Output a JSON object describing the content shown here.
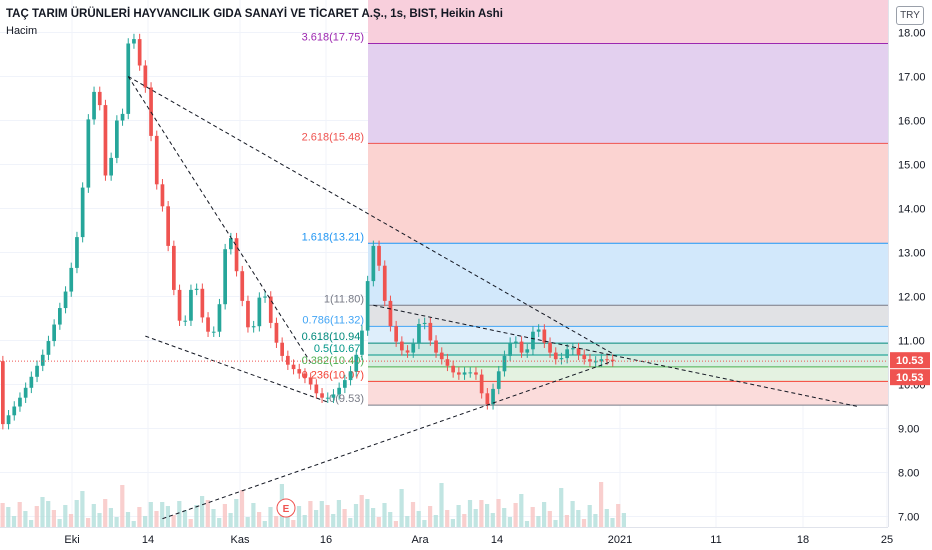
{
  "header": {
    "title": "TAÇ TARIM ÜRÜNLERİ HAYVANCILIK GIDA SANAYİ VE TİCARET A.Ş., 1s, BIST, Heikin Ashi",
    "volume_label": "Hacim",
    "currency": "TRY"
  },
  "colors": {
    "up": "#26a69a",
    "down": "#ef5350",
    "trendline": "#131722",
    "last_price_badge": "#ef5350",
    "pivot_line": "#9598a1"
  },
  "earnings_marker": "E",
  "chart_data": {
    "type": "candlestick",
    "candle_style": "Heikin Ashi",
    "interval": "1s",
    "currency": "TRY",
    "ylim": [
      6.9,
      18.3
    ],
    "y_ticks": [
      "18.00",
      "17.00",
      "16.00",
      "15.00",
      "14.00",
      "13.00",
      "12.00",
      "11.00",
      "10.00",
      "9.00",
      "8.00",
      "7.00"
    ],
    "x_ticks": [
      "Eki",
      "14",
      "Kas",
      "16",
      "Ara",
      "14",
      "2021",
      "11",
      "18",
      "25"
    ],
    "last_price": "10.53",
    "last_price_badges": [
      "10.53",
      "10.53"
    ],
    "price_path": [
      [
        0,
        9.0
      ],
      [
        4,
        9.8
      ],
      [
        8,
        10.8
      ],
      [
        12,
        12.3
      ],
      [
        14,
        13.7
      ],
      [
        16,
        16.8
      ],
      [
        18,
        16.2
      ],
      [
        19,
        13.3
      ],
      [
        20,
        17.0
      ],
      [
        21,
        15.0
      ],
      [
        22,
        17.3
      ],
      [
        23,
        18.2
      ],
      [
        24,
        17.5
      ],
      [
        26,
        16.5
      ],
      [
        27,
        14.8
      ],
      [
        29,
        13.8
      ],
      [
        30,
        12.5
      ],
      [
        32,
        11.1
      ],
      [
        34,
        12.5
      ],
      [
        36,
        11.2
      ],
      [
        38,
        11.2
      ],
      [
        40,
        13.7
      ],
      [
        42,
        12.2
      ],
      [
        44,
        11.0
      ],
      [
        46,
        12.3
      ],
      [
        48,
        11.1
      ],
      [
        50,
        10.5
      ],
      [
        52,
        10.3
      ],
      [
        54,
        10.1
      ],
      [
        56,
        9.7
      ],
      [
        58,
        9.7
      ],
      [
        60,
        10.0
      ],
      [
        62,
        10.4
      ],
      [
        64,
        11.5
      ],
      [
        65,
        13.2
      ],
      [
        66,
        13.1
      ],
      [
        68,
        11.5
      ],
      [
        70,
        10.8
      ],
      [
        72,
        10.7
      ],
      [
        74,
        11.6
      ],
      [
        76,
        10.8
      ],
      [
        78,
        10.5
      ],
      [
        80,
        10.2
      ],
      [
        82,
        10.3
      ],
      [
        84,
        10.2
      ],
      [
        85,
        9.4
      ],
      [
        86,
        9.7
      ],
      [
        88,
        10.5
      ],
      [
        90,
        11.1
      ],
      [
        92,
        10.6
      ],
      [
        94,
        11.4
      ],
      [
        96,
        10.8
      ],
      [
        98,
        10.5
      ],
      [
        100,
        10.9
      ],
      [
        102,
        10.6
      ],
      [
        104,
        10.5
      ],
      [
        106,
        10.6
      ],
      [
        107,
        10.53
      ]
    ],
    "fibonacci": {
      "levels": [
        {
          "label": "3.618(17.75)",
          "value": 17.75,
          "color": "#9c27b0",
          "fill": "#e3d0ef"
        },
        {
          "label": "2.618(15.48)",
          "value": 15.48,
          "color": "#ef5350",
          "fill": "#fbd3d1"
        },
        {
          "label": "1.618(13.21)",
          "value": 13.21,
          "color": "#2196f3",
          "fill": "#d2e8fb"
        },
        {
          "label": "1(11.80)",
          "value": 11.8,
          "color": "#787b86",
          "fill": "#e1e2e5"
        },
        {
          "label": "0.786(11.32)",
          "value": 11.32,
          "color": "#42a5f5",
          "fill": "#deeefb"
        },
        {
          "label": "0.618(10.94)",
          "value": 10.94,
          "color": "#00897b",
          "fill": "#cfe9e4"
        },
        {
          "label": "0.5(10.67)",
          "value": 10.67,
          "color": "#009688",
          "fill": "#d8eee2"
        },
        {
          "label": "0.382(10.40)",
          "value": 10.4,
          "color": "#4caf50",
          "fill": "#e4f2e1"
        },
        {
          "label": "0.236(10.07)",
          "value": 10.07,
          "color": "#f44336",
          "fill": "#fbdcdb"
        },
        {
          "label": "0(9.53)",
          "value": 9.53,
          "color": "#787b86",
          "fill": "#fff"
        }
      ],
      "top_fill": "#f8cfdc"
    },
    "trendlines": [
      {
        "from": [
          22,
          17.0
        ],
        "to": [
          107,
          10.7
        ]
      },
      {
        "from": [
          22,
          17.0
        ],
        "to": [
          54,
          10.5
        ]
      },
      {
        "from": [
          25,
          11.1
        ],
        "to": [
          57,
          9.6
        ]
      },
      {
        "from": [
          28,
          6.95
        ],
        "to": [
          107,
          10.53
        ]
      },
      {
        "from": [
          65,
          11.8
        ],
        "to": [
          150,
          9.5
        ]
      }
    ]
  }
}
